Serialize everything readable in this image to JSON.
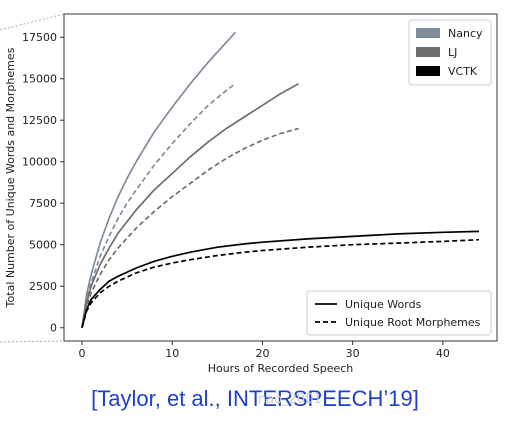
{
  "chart_data": {
    "type": "line",
    "xlabel": "Hours of Recorded Speech",
    "ylabel": "Total Number of Unique Words and Morphemes",
    "xlim": [
      -2,
      46
    ],
    "ylim": [
      -800,
      18900
    ],
    "xticks": [
      0,
      10,
      20,
      30,
      40
    ],
    "yticks": [
      0,
      2500,
      5000,
      7500,
      10000,
      12500,
      15000,
      17500
    ],
    "grid": false,
    "legend_speakers": {
      "placement": "top-right",
      "entries": [
        {
          "name": "Nancy",
          "color": "#7f8c9b"
        },
        {
          "name": "LJ",
          "color": "#6e6e6e"
        },
        {
          "name": "VCTK",
          "color": "#000000"
        }
      ]
    },
    "legend_styles": {
      "placement": "bottom-right",
      "entries": [
        {
          "name": "Unique Words",
          "dash": "solid"
        },
        {
          "name": "Unique Root Morphemes",
          "dash": "dashed"
        }
      ]
    },
    "series": [
      {
        "speaker": "Nancy",
        "kind": "Unique Words",
        "color": "#7f8c9b",
        "dash": "solid",
        "x": [
          0,
          0.5,
          1,
          2,
          3,
          4,
          5,
          6,
          8,
          10,
          12,
          14,
          16,
          17
        ],
        "y": [
          0,
          2000,
          3200,
          5100,
          6600,
          7900,
          9000,
          10000,
          11800,
          13300,
          14700,
          16000,
          17200,
          17800
        ]
      },
      {
        "speaker": "Nancy",
        "kind": "Unique Root Morphemes",
        "color": "#7f8c9b",
        "dash": "dashed",
        "x": [
          0,
          0.5,
          1,
          2,
          3,
          4,
          5,
          6,
          8,
          10,
          12,
          14,
          16,
          17
        ],
        "y": [
          0,
          1700,
          2700,
          4300,
          5500,
          6600,
          7500,
          8300,
          9800,
          11100,
          12300,
          13400,
          14300,
          14700
        ]
      },
      {
        "speaker": "LJ",
        "kind": "Unique Words",
        "color": "#6e6e6e",
        "dash": "solid",
        "x": [
          0,
          0.5,
          1,
          2,
          3,
          4,
          6,
          8,
          10,
          12,
          14,
          16,
          18,
          20,
          22,
          24
        ],
        "y": [
          0,
          1500,
          2500,
          3800,
          4800,
          5700,
          7100,
          8300,
          9300,
          10300,
          11200,
          12000,
          12700,
          13400,
          14100,
          14700
        ]
      },
      {
        "speaker": "LJ",
        "kind": "Unique Root Morphemes",
        "color": "#6e6e6e",
        "dash": "dashed",
        "x": [
          0,
          0.5,
          1,
          2,
          3,
          4,
          6,
          8,
          10,
          12,
          14,
          16,
          18,
          20,
          22,
          24
        ],
        "y": [
          0,
          1300,
          2100,
          3200,
          4100,
          4800,
          6000,
          7000,
          7900,
          8700,
          9500,
          10200,
          10800,
          11300,
          11700,
          12000
        ]
      },
      {
        "speaker": "VCTK",
        "kind": "Unique Words",
        "color": "#000000",
        "dash": "solid",
        "x": [
          0,
          0.5,
          1,
          2,
          3,
          4,
          6,
          8,
          10,
          12,
          15,
          18,
          20,
          25,
          30,
          35,
          40,
          44
        ],
        "y": [
          0,
          1100,
          1700,
          2300,
          2800,
          3100,
          3600,
          4000,
          4300,
          4550,
          4850,
          5050,
          5150,
          5350,
          5500,
          5650,
          5750,
          5800
        ]
      },
      {
        "speaker": "VCTK",
        "kind": "Unique Root Morphemes",
        "color": "#000000",
        "dash": "dashed",
        "x": [
          0,
          0.5,
          1,
          2,
          3,
          4,
          6,
          8,
          10,
          12,
          15,
          18,
          20,
          25,
          30,
          35,
          40,
          44
        ],
        "y": [
          0,
          1000,
          1500,
          2100,
          2500,
          2800,
          3300,
          3650,
          3900,
          4100,
          4350,
          4550,
          4650,
          4850,
          5000,
          5100,
          5200,
          5300
        ]
      }
    ]
  },
  "citation": "[Taylor, et al., INTERSPEECH’19]",
  "watermark": "nao_2001"
}
